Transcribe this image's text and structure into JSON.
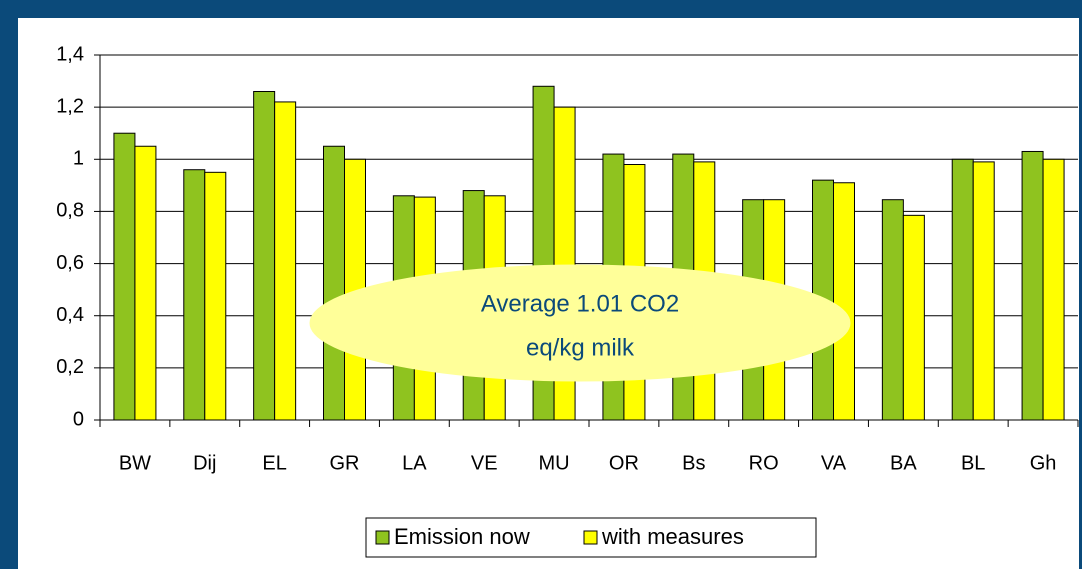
{
  "chart_data": {
    "type": "bar",
    "categories": [
      "BW",
      "Dij",
      "EL",
      "GR",
      "LA",
      "VE",
      "MU",
      "OR",
      "Bs",
      "RO",
      "VA",
      "BA",
      "BL",
      "Gh"
    ],
    "series": [
      {
        "name": "Emission now",
        "color": "#8fc31f",
        "values": [
          1.1,
          0.96,
          1.26,
          1.05,
          0.86,
          0.88,
          1.28,
          1.02,
          1.02,
          0.845,
          0.92,
          0.845,
          1.0,
          1.03
        ]
      },
      {
        "name": "with measures",
        "color": "#ffff00",
        "values": [
          1.05,
          0.95,
          1.22,
          1.0,
          0.855,
          0.86,
          1.2,
          0.98,
          0.99,
          0.845,
          0.91,
          0.785,
          0.99,
          1.0
        ]
      }
    ],
    "ylim": [
      0,
      1.4
    ],
    "yticks": [
      0,
      {
        "value": 0.2,
        "label": "0,2"
      },
      {
        "value": 0.4,
        "label": "0,4"
      },
      {
        "value": 0.6,
        "label": "0,6"
      },
      {
        "value": 0.8,
        "label": "0,8"
      },
      1,
      {
        "value": 1.2,
        "label": "1,2"
      },
      {
        "value": 1.4,
        "label": "1,4"
      }
    ],
    "grid": true,
    "annotation": [
      "Average 1.01 CO2",
      "eq/kg milk"
    ],
    "legend": "bottom"
  }
}
